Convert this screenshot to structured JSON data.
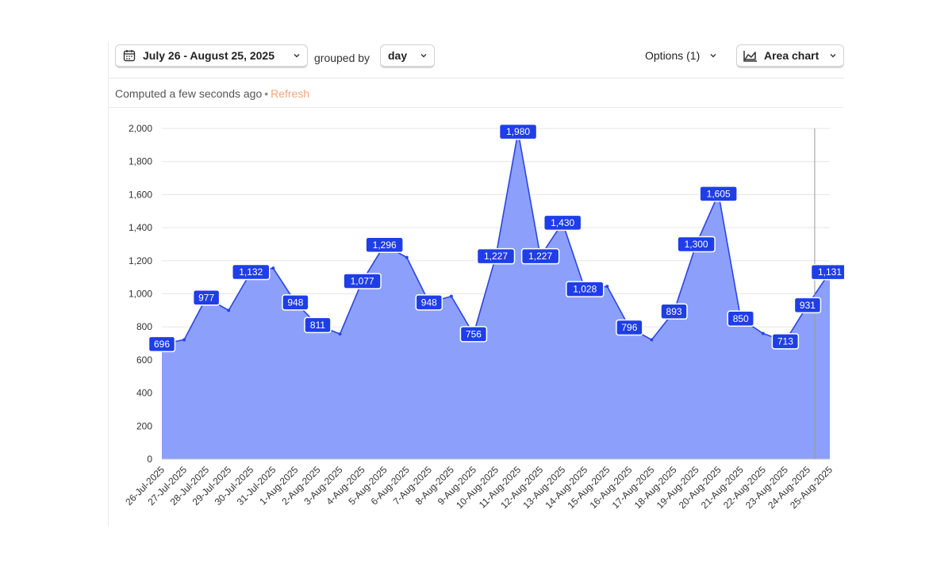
{
  "toolbar": {
    "date_range": "July 26 - August 25, 2025",
    "grouped_by_label": "grouped by",
    "interval": "day",
    "options_label": "Options (1)",
    "chart_type_label": "Area chart"
  },
  "status": {
    "computed_text": "Computed a few seconds ago",
    "refresh_label": "Refresh"
  },
  "colors": {
    "area_fill": "#8ca0fb",
    "line": "#2b45e0",
    "label_bg": "#1f3ee8",
    "refresh": "#f2a57e"
  },
  "icons": [
    "calendar-icon",
    "chevron-down-icon",
    "area-chart-icon"
  ],
  "chart_data": {
    "type": "area",
    "x": [
      "26-Jul-2025",
      "27-Jul-2025",
      "28-Jul-2025",
      "29-Jul-2025",
      "30-Jul-2025",
      "31-Jul-2025",
      "1-Aug-2025",
      "2-Aug-2025",
      "3-Aug-2025",
      "4-Aug-2025",
      "5-Aug-2025",
      "6-Aug-2025",
      "7-Aug-2025",
      "8-Aug-2025",
      "9-Aug-2025",
      "10-Aug-2025",
      "11-Aug-2025",
      "12-Aug-2025",
      "13-Aug-2025",
      "14-Aug-2025",
      "15-Aug-2025",
      "16-Aug-2025",
      "17-Aug-2025",
      "18-Aug-2025",
      "19-Aug-2025",
      "20-Aug-2025",
      "21-Aug-2025",
      "22-Aug-2025",
      "23-Aug-2025",
      "24-Aug-2025",
      "25-Aug-2025"
    ],
    "values": [
      696,
      722,
      977,
      900,
      1132,
      1155,
      948,
      811,
      757,
      1077,
      1296,
      1220,
      948,
      985,
      756,
      1227,
      1980,
      1227,
      1430,
      1028,
      1045,
      796,
      722,
      893,
      1300,
      1605,
      850,
      760,
      713,
      931,
      1131
    ],
    "data_labels": [
      "696",
      null,
      "977",
      null,
      "1,132",
      null,
      "948",
      "811",
      null,
      "1,077",
      "1,296",
      null,
      "948",
      null,
      "756",
      "1,227",
      "1,980",
      "1,227",
      "1,430",
      "1,028",
      null,
      "796",
      null,
      "893",
      "1,300",
      "1,605",
      "850",
      null,
      "713",
      "931",
      "1,131"
    ],
    "y_ticks": [
      "0",
      "200",
      "400",
      "600",
      "800",
      "1,000",
      "1,200",
      "1,400",
      "1,600",
      "1,800",
      "2,000"
    ],
    "ylim": [
      0,
      2000
    ],
    "grid": true,
    "legend": "none"
  }
}
